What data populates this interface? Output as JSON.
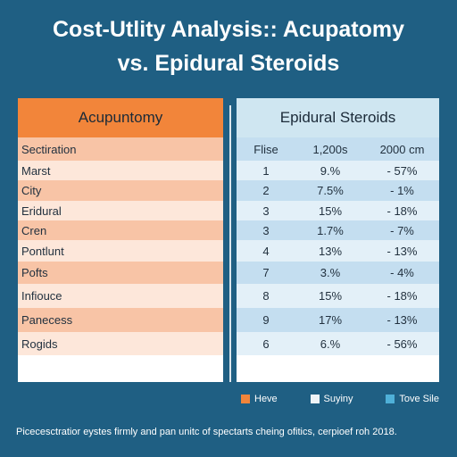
{
  "title_line1": "Cost-Utlity Analysis:: Acupatomy",
  "title_line2": "vs. Epidural Steroids",
  "left": {
    "header": "Acupuntomy",
    "rows": [
      "Sectiration",
      "Marst",
      "City",
      "Eridural",
      "Cren",
      "Pontlunt",
      "Pofts",
      "Infiouce",
      "Panecess",
      "Rogids"
    ]
  },
  "right": {
    "header": "Epidural Steroids",
    "rows": [
      [
        "Flise",
        "1,200s",
        "2000 cm"
      ],
      [
        "1",
        "9.%",
        "- 57%"
      ],
      [
        "2",
        "7.5%",
        "- 1%"
      ],
      [
        "3",
        "15%",
        "- 18%"
      ],
      [
        "3",
        "1.7%",
        "- 7%"
      ],
      [
        "4",
        "13%",
        "- 13%"
      ],
      [
        "7",
        "3.%",
        "- 4%"
      ],
      [
        "8",
        "15%",
        "- 18%"
      ],
      [
        "9",
        "17%",
        "- 13%"
      ],
      [
        "6",
        "6.%",
        "- 56%"
      ]
    ]
  },
  "legend": [
    {
      "label": "Heve",
      "color": "#f2853a"
    },
    {
      "label": "Suyiny",
      "color": "#eef3f6"
    },
    {
      "label": "Tove Sile",
      "color": "#4fb0d8"
    }
  ],
  "footnote": "Picecesctratior eystes firmly and pan unitc of spectarts cheing ofitics, cerpioef roh 2018.",
  "chart_data": {
    "type": "table",
    "title": "Cost-Utlity Analysis:: Acupatomy vs. Epidural Steroids",
    "columns": [
      "Acupuntomy",
      "Flise",
      "1,200s",
      "2000 cm"
    ],
    "rows": [
      [
        "Marst",
        "1",
        "9.%",
        "- 57%"
      ],
      [
        "City",
        "2",
        "7.5%",
        "- 1%"
      ],
      [
        "Eridural",
        "3",
        "15%",
        "- 18%"
      ],
      [
        "Cren",
        "3",
        "1.7%",
        "- 7%"
      ],
      [
        "Pontlunt",
        "4",
        "13%",
        "- 13%"
      ],
      [
        "Pofts",
        "7",
        "3.%",
        "- 4%"
      ],
      [
        "Infiouce",
        "8",
        "15%",
        "- 18%"
      ],
      [
        "Panecess",
        "9",
        "17%",
        "- 13%"
      ],
      [
        "Rogids",
        "6",
        "6.%",
        "- 56%"
      ]
    ],
    "legend": [
      "Heve",
      "Suyiny",
      "Tove Sile"
    ],
    "legend_position": "bottom-right"
  }
}
